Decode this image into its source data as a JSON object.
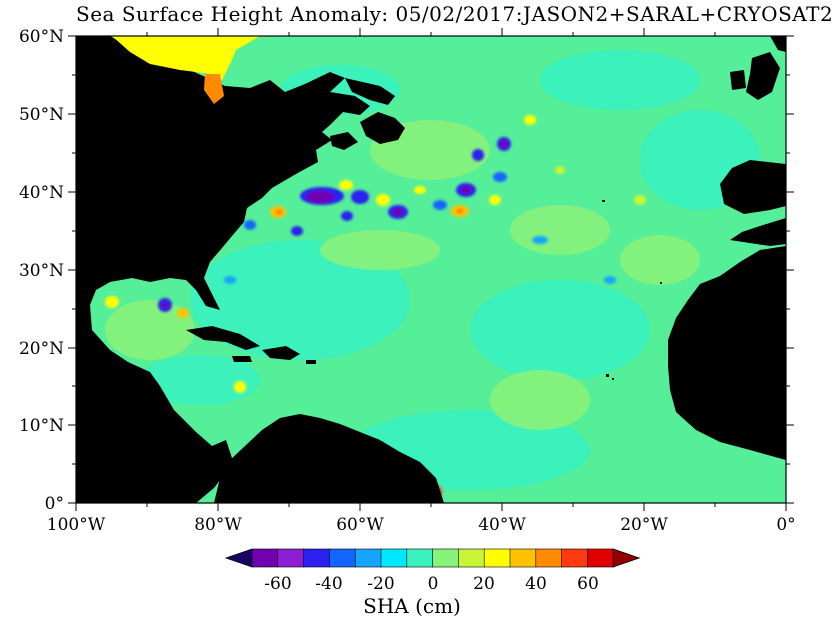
{
  "title": "Sea Surface Height Anomaly: 05/02/2017:JASON2+SARAL+CRYOSAT2",
  "map": {
    "lat_labels": [
      "60°N",
      "50°N",
      "40°N",
      "30°N",
      "20°N",
      "10°N",
      "0°"
    ],
    "lon_labels": [
      "100°W",
      "80°W",
      "60°W",
      "40°W",
      "20°W",
      "0°"
    ],
    "lat_range": [
      0,
      60
    ],
    "lon_range": [
      -100,
      0
    ],
    "background_color": "#55ee99",
    "land_color": "#000000"
  },
  "colorbar": {
    "title": "SHA (cm)",
    "tick_labels": [
      "-60",
      "-40",
      "-20",
      "0",
      "20",
      "40",
      "60"
    ],
    "colors": [
      "#1a0066",
      "#7000b0",
      "#8c1fd6",
      "#2a20f0",
      "#1266ff",
      "#14a5ff",
      "#00e8ff",
      "#3af2c0",
      "#88f27a",
      "#c8f536",
      "#ffff00",
      "#ffc200",
      "#ff8a00",
      "#ff3a10",
      "#e00000",
      "#900000"
    ]
  }
}
